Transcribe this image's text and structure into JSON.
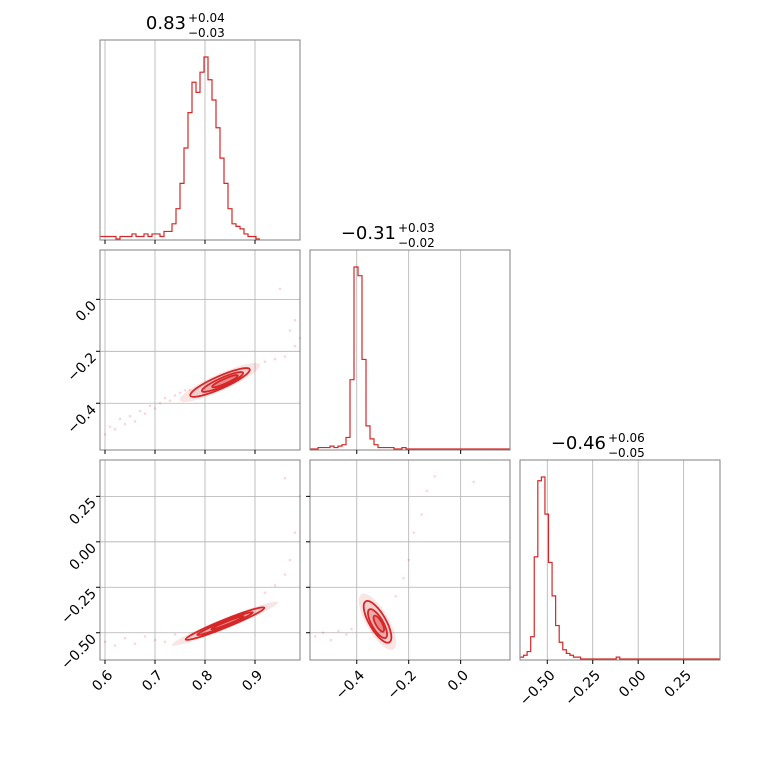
{
  "chart_data": {
    "type": "corner",
    "color": "#d62728",
    "parameters": [
      {
        "median": "0.83",
        "plus": "+0.04",
        "minus": "−0.03",
        "range": [
          0.59,
          0.99
        ],
        "ticks": [
          0.6,
          0.7,
          0.8,
          0.9
        ],
        "tick_labels": [
          "0.6",
          "0.7",
          "0.8",
          "0.9"
        ],
        "hist": {
          "edges_start": 0.59,
          "bin_width": 0.008,
          "counts": [
            1,
            1,
            1,
            1,
            0,
            1,
            1,
            1,
            2,
            1,
            1,
            2,
            1,
            2,
            2,
            1,
            3,
            3,
            6,
            12,
            22,
            36,
            50,
            62,
            58,
            66,
            72,
            63,
            55,
            44,
            32,
            22,
            12,
            6,
            5,
            4,
            2,
            1,
            1,
            0
          ]
        }
      },
      {
        "median": "−0.31",
        "plus": "+0.03",
        "minus": "−0.02",
        "range": [
          -0.58,
          0.19
        ],
        "ticks": [
          -0.4,
          -0.2,
          0.0
        ],
        "tick_labels": [
          "−0.4",
          "−0.2",
          "0.0"
        ],
        "hist": {
          "edges_start": -0.58,
          "bin_width": 0.0154,
          "counts": [
            0,
            0,
            1,
            1,
            1,
            2,
            1,
            2,
            3,
            8,
            48,
            126,
            120,
            62,
            16,
            7,
            3,
            1,
            1,
            1,
            1,
            0,
            0,
            1,
            0,
            0,
            0,
            0,
            0,
            0,
            0,
            0,
            0,
            0,
            0,
            0,
            0,
            0,
            0,
            0,
            0,
            0,
            0,
            0,
            0,
            0,
            0,
            0,
            0,
            0
          ]
        }
      },
      {
        "median": "−0.46",
        "plus": "+0.06",
        "minus": "−0.05",
        "range": [
          -0.65,
          0.45
        ],
        "ticks": [
          -0.5,
          -0.25,
          0.0,
          0.25
        ],
        "tick_labels": [
          "−0.50",
          "−0.25",
          "0.00",
          "0.25"
        ],
        "hist": {
          "edges_start": -0.65,
          "bin_width": 0.0196,
          "counts": [
            1,
            2,
            4,
            12,
            55,
            96,
            98,
            78,
            52,
            34,
            18,
            9,
            5,
            3,
            2,
            1,
            1,
            0,
            0,
            0,
            0,
            0,
            0,
            0,
            0,
            0,
            0,
            1,
            0,
            0,
            0,
            0,
            0,
            0,
            0,
            0,
            0,
            0,
            0,
            0,
            0,
            0,
            0,
            0,
            0,
            0,
            0,
            0,
            0,
            0,
            0,
            0,
            0,
            0,
            0,
            0
          ]
        }
      }
    ],
    "scatter_2d": [
      {
        "x_param": 0,
        "y_param": 1,
        "samples": [
          [
            0.6,
            -0.52
          ],
          [
            0.61,
            -0.49
          ],
          [
            0.62,
            -0.5
          ],
          [
            0.63,
            -0.46
          ],
          [
            0.64,
            -0.48
          ],
          [
            0.65,
            -0.45
          ],
          [
            0.66,
            -0.47
          ],
          [
            0.67,
            -0.43
          ],
          [
            0.68,
            -0.44
          ],
          [
            0.69,
            -0.41
          ],
          [
            0.7,
            -0.42
          ],
          [
            0.71,
            -0.4
          ],
          [
            0.72,
            -0.38
          ],
          [
            0.73,
            -0.39
          ],
          [
            0.74,
            -0.37
          ],
          [
            0.75,
            -0.36
          ],
          [
            0.76,
            -0.35
          ],
          [
            0.77,
            -0.35
          ],
          [
            0.92,
            -0.24
          ],
          [
            0.94,
            -0.23
          ],
          [
            0.96,
            -0.22
          ],
          [
            0.98,
            -0.18
          ],
          [
            0.99,
            -0.15
          ],
          [
            0.97,
            -0.12
          ],
          [
            0.95,
            0.04
          ],
          [
            0.98,
            -0.08
          ]
        ],
        "contours": [
          {
            "center": [
              0.83,
              -0.32
            ],
            "rx": 0.065,
            "ry": 0.024,
            "angle_deg": 24
          },
          {
            "center": [
              0.835,
              -0.318
            ],
            "rx": 0.045,
            "ry": 0.016,
            "angle_deg": 24
          },
          {
            "center": [
              0.84,
              -0.315
            ],
            "rx": 0.028,
            "ry": 0.009,
            "angle_deg": 24
          }
        ]
      },
      {
        "x_param": 0,
        "y_param": 2,
        "samples": [
          [
            0.6,
            -0.55
          ],
          [
            0.62,
            -0.57
          ],
          [
            0.64,
            -0.53
          ],
          [
            0.66,
            -0.56
          ],
          [
            0.68,
            -0.52
          ],
          [
            0.7,
            -0.54
          ],
          [
            0.72,
            -0.55
          ],
          [
            0.74,
            -0.51
          ],
          [
            0.92,
            -0.28
          ],
          [
            0.94,
            -0.24
          ],
          [
            0.96,
            -0.18
          ],
          [
            0.97,
            -0.1
          ],
          [
            0.98,
            0.05
          ],
          [
            0.99,
            0.25
          ],
          [
            0.96,
            0.35
          ]
        ],
        "contours": [
          {
            "center": [
              0.84,
              -0.45
            ],
            "rx": 0.085,
            "ry": 0.022,
            "angle_deg": 22
          },
          {
            "center": [
              0.84,
              -0.45
            ],
            "rx": 0.06,
            "ry": 0.014,
            "angle_deg": 22
          },
          {
            "center": [
              0.845,
              -0.445
            ],
            "rx": 0.035,
            "ry": 0.008,
            "angle_deg": 22
          }
        ]
      },
      {
        "x_param": 1,
        "y_param": 2,
        "samples": [
          [
            -0.56,
            -0.52
          ],
          [
            -0.53,
            -0.5
          ],
          [
            -0.5,
            -0.54
          ],
          [
            -0.47,
            -0.49
          ],
          [
            -0.44,
            -0.51
          ],
          [
            -0.42,
            -0.48
          ],
          [
            -0.25,
            -0.3
          ],
          [
            -0.22,
            -0.2
          ],
          [
            -0.2,
            -0.1
          ],
          [
            -0.18,
            0.05
          ],
          [
            -0.15,
            0.15
          ],
          [
            -0.13,
            0.28
          ],
          [
            -0.1,
            0.36
          ],
          [
            0.05,
            0.33
          ]
        ],
        "contours": [
          {
            "center": [
              -0.32,
              -0.44
            ],
            "rx": 0.032,
            "ry": 0.13,
            "angle_deg": 30
          },
          {
            "center": [
              -0.32,
              -0.45
            ],
            "rx": 0.022,
            "ry": 0.09,
            "angle_deg": 30
          },
          {
            "center": [
              -0.315,
              -0.45
            ],
            "rx": 0.012,
            "ry": 0.05,
            "angle_deg": 30
          }
        ]
      }
    ],
    "grid": true
  }
}
